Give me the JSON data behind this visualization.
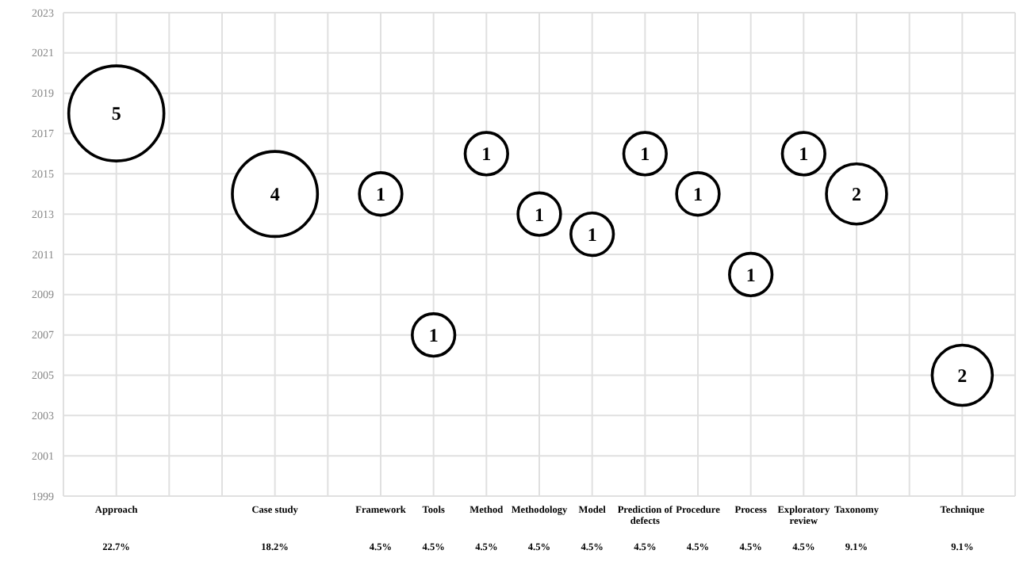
{
  "chart_data": {
    "type": "bubble",
    "categories": [
      null,
      "Approach",
      null,
      null,
      "Case study",
      null,
      "Framework",
      "Tools",
      "Method",
      "Methodology",
      "Model",
      "Prediction of defects",
      "Procedure",
      "Process",
      "Exploratory review",
      "Taxonomy",
      null,
      "Technique",
      null
    ],
    "values": [
      null,
      2018,
      null,
      null,
      2014,
      null,
      2014,
      2007,
      2016,
      2013,
      2012,
      2016,
      2014,
      2010,
      2016,
      2014,
      null,
      2005,
      null
    ],
    "sizes": [
      null,
      5,
      null,
      null,
      4,
      null,
      1,
      1,
      1,
      1,
      1,
      1,
      1,
      1,
      1,
      2,
      null,
      2,
      null
    ],
    "value_labels": [
      null,
      "5",
      null,
      null,
      "4",
      null,
      "1",
      "1",
      "1",
      "1",
      "1",
      "1",
      "1",
      "1",
      "1",
      "2",
      null,
      "2",
      null
    ],
    "color": "#ffffff",
    "ylim": [
      1999,
      2023
    ],
    "yticks": [
      1999,
      2001,
      2003,
      2005,
      2007,
      2009,
      2011,
      2013,
      2015,
      2017,
      2019,
      2021,
      2023
    ],
    "grid": true,
    "annotations": [
      "22.7%",
      "18.2%",
      "4.5%",
      "4.5%",
      "4.5%",
      "4.5%",
      "4.5%",
      "4.5%",
      "4.5%",
      "4.5%",
      "4.5%",
      "9.1%",
      "9.1%"
    ]
  }
}
